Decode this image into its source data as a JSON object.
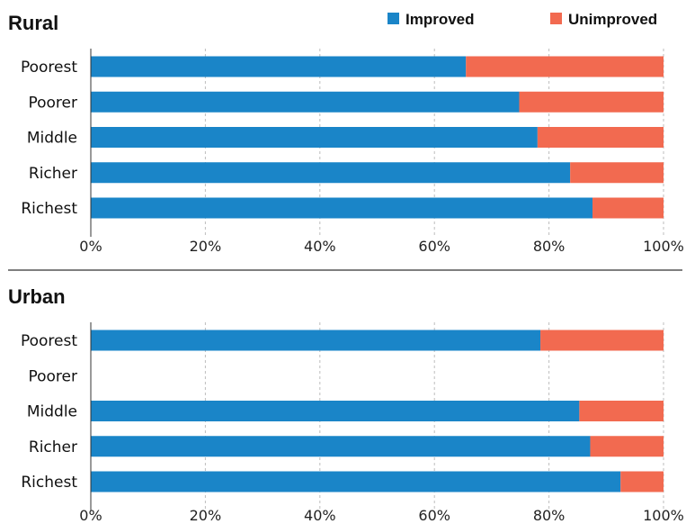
{
  "legend": [
    {
      "label": "Improved",
      "color": "#1a85c8"
    },
    {
      "label": "Unimproved",
      "color": "#f26a50"
    }
  ],
  "chart_data": [
    {
      "type": "bar",
      "orientation": "horizontal",
      "stacked": true,
      "title": "Rural",
      "categories": [
        "Poorest",
        "Poorer",
        "Middle",
        "Richer",
        "Richest"
      ],
      "series": [
        {
          "name": "Improved",
          "values": [
            65.5,
            74.8,
            78.0,
            83.7,
            87.6
          ]
        },
        {
          "name": "Unimproved",
          "values": [
            34.5,
            25.2,
            22.0,
            16.3,
            12.4
          ]
        }
      ],
      "xlim": [
        0,
        100
      ],
      "xticks": [
        "0%",
        "20%",
        "40%",
        "60%",
        "80%",
        "100%"
      ],
      "grid": true,
      "legend_position": "top-right"
    },
    {
      "type": "bar",
      "orientation": "horizontal",
      "stacked": true,
      "title": "Urban",
      "categories": [
        "Poorest",
        "Poorer",
        "Middle",
        "Richer",
        "Richest"
      ],
      "series": [
        {
          "name": "Improved",
          "values": [
            78.5,
            null,
            85.3,
            87.2,
            92.5
          ]
        },
        {
          "name": "Unimproved",
          "values": [
            21.5,
            null,
            14.7,
            12.8,
            7.5
          ]
        }
      ],
      "xlim": [
        0,
        100
      ],
      "xticks": [
        "0%",
        "20%",
        "40%",
        "60%",
        "80%",
        "100%"
      ],
      "grid": true
    }
  ]
}
